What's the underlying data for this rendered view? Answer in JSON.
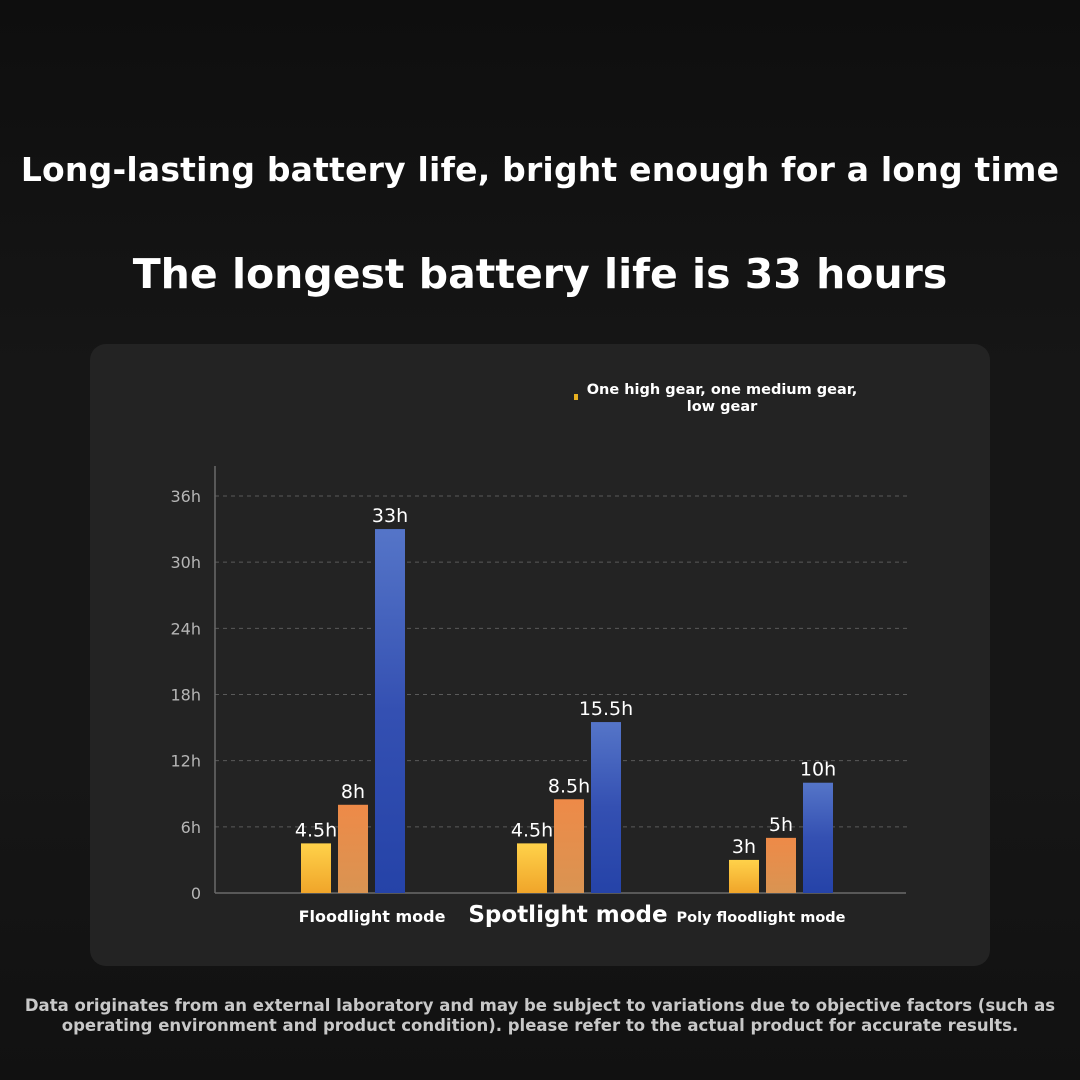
{
  "header": {
    "headline": "Long-lasting battery life, bright enough for a long time",
    "subheadline": "The longest battery life is 33 hours"
  },
  "legend": {
    "text": "One high gear, one medium gear, low gear"
  },
  "footnote": {
    "line1": "Data originates from an external laboratory and may be subject to variations due to objective factors (such as",
    "line2": "operating environment and product condition). please refer to the actual product for accurate results."
  },
  "chart_data": {
    "type": "bar",
    "categories": [
      "Floodlight mode",
      "Spotlight mode",
      "Poly floodlight mode"
    ],
    "series": [
      {
        "values": [
          4.5,
          4.5,
          3
        ],
        "labels": [
          "4.5h",
          "4.5h",
          "3h"
        ],
        "color": "#f5b73a"
      },
      {
        "values": [
          8,
          8.5,
          5
        ],
        "labels": [
          "8h",
          "8.5h",
          "5h"
        ],
        "color": "#e48a4c"
      },
      {
        "values": [
          33,
          15.5,
          10
        ],
        "labels": [
          "33h",
          "15.5h",
          "10h"
        ],
        "color": "#3a57b8"
      }
    ],
    "yticks": [
      0,
      6,
      12,
      18,
      24,
      30,
      36
    ],
    "ytick_labels": [
      "0",
      "6h",
      "12h",
      "18h",
      "24h",
      "30h",
      "36h"
    ],
    "ylim": [
      0,
      36
    ],
    "grid": true,
    "grid_style": "dashed",
    "legend_position": "top-right"
  }
}
